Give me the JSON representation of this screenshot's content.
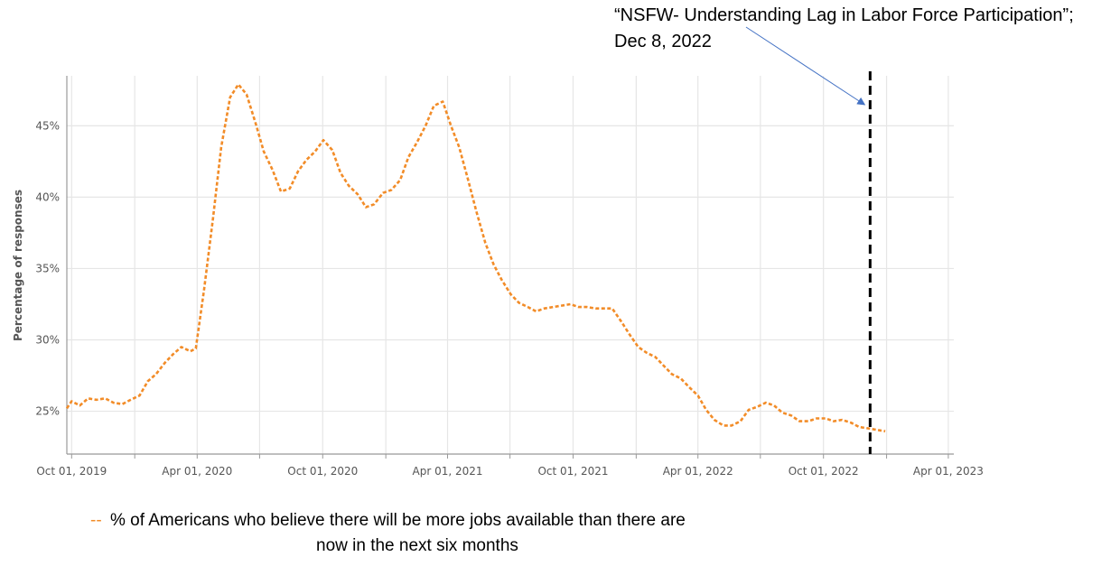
{
  "chart_data": {
    "type": "line",
    "title": "",
    "xlabel": "",
    "ylabel": "Percentage of responses",
    "ylim": [
      22,
      48.5
    ],
    "xlim": [
      "2019-09-24",
      "2023-04-09"
    ],
    "grid": true,
    "y_ticks": [
      {
        "value": 25,
        "label": "25%"
      },
      {
        "value": 30,
        "label": "30%"
      },
      {
        "value": 35,
        "label": "35%"
      },
      {
        "value": 40,
        "label": "40%"
      },
      {
        "value": 45,
        "label": "45%"
      }
    ],
    "x_labeled_ticks": [
      {
        "date": "2019-10-01",
        "label": "Oct 01, 2019"
      },
      {
        "date": "2020-04-01",
        "label": "Apr 01, 2020"
      },
      {
        "date": "2020-10-01",
        "label": "Oct 01, 2020"
      },
      {
        "date": "2021-04-01",
        "label": "Apr 01, 2021"
      },
      {
        "date": "2021-10-01",
        "label": "Oct 01, 2021"
      },
      {
        "date": "2022-04-01",
        "label": "Apr 01, 2022"
      },
      {
        "date": "2022-10-01",
        "label": "Oct 01, 2022"
      },
      {
        "date": "2023-04-01",
        "label": "Apr 01, 2023"
      }
    ],
    "x_minor_gridlines": [
      "2020-01-01",
      "2020-07-01",
      "2021-01-01",
      "2021-07-01",
      "2022-01-01",
      "2022-07-01",
      "2023-01-01"
    ],
    "series": [
      {
        "name": "% of Americans who believe there will be more jobs available than there are now in the next six months",
        "color": "#F28C28",
        "line_style": "dashed",
        "points": [
          [
            "2019-09-24",
            25.2
          ],
          [
            "2019-10-01",
            25.7
          ],
          [
            "2019-10-13",
            25.4
          ],
          [
            "2019-10-25",
            25.9
          ],
          [
            "2019-11-06",
            25.8
          ],
          [
            "2019-11-19",
            25.9
          ],
          [
            "2019-12-01",
            25.6
          ],
          [
            "2019-12-14",
            25.5
          ],
          [
            "2019-12-26",
            25.8
          ],
          [
            "2020-01-08",
            26.1
          ],
          [
            "2020-01-20",
            27.1
          ],
          [
            "2020-02-01",
            27.6
          ],
          [
            "2020-02-14",
            28.4
          ],
          [
            "2020-02-26",
            29.0
          ],
          [
            "2020-03-09",
            29.5
          ],
          [
            "2020-03-22",
            29.2
          ],
          [
            "2020-03-30",
            29.4
          ],
          [
            "2020-04-11",
            33.5
          ],
          [
            "2020-04-24",
            38.5
          ],
          [
            "2020-05-06",
            43.5
          ],
          [
            "2020-05-19",
            47.0
          ],
          [
            "2020-05-31",
            47.9
          ],
          [
            "2020-06-12",
            47.2
          ],
          [
            "2020-06-25",
            45.2
          ],
          [
            "2020-07-07",
            43.2
          ],
          [
            "2020-07-20",
            41.9
          ],
          [
            "2020-08-01",
            40.4
          ],
          [
            "2020-08-14",
            40.6
          ],
          [
            "2020-08-26",
            41.8
          ],
          [
            "2020-09-07",
            42.6
          ],
          [
            "2020-09-20",
            43.2
          ],
          [
            "2020-10-02",
            44.0
          ],
          [
            "2020-10-15",
            43.3
          ],
          [
            "2020-10-27",
            41.7
          ],
          [
            "2020-11-08",
            40.8
          ],
          [
            "2020-11-21",
            40.2
          ],
          [
            "2020-12-03",
            39.3
          ],
          [
            "2020-12-15",
            39.5
          ],
          [
            "2020-12-28",
            40.3
          ],
          [
            "2021-01-09",
            40.5
          ],
          [
            "2021-01-22",
            41.2
          ],
          [
            "2021-02-03",
            42.8
          ],
          [
            "2021-02-15",
            43.8
          ],
          [
            "2021-02-28",
            45.0
          ],
          [
            "2021-03-12",
            46.4
          ],
          [
            "2021-03-25",
            46.7
          ],
          [
            "2021-04-06",
            45.0
          ],
          [
            "2021-04-18",
            43.5
          ],
          [
            "2021-05-01",
            41.2
          ],
          [
            "2021-05-13",
            39.0
          ],
          [
            "2021-05-26",
            36.8
          ],
          [
            "2021-06-07",
            35.3
          ],
          [
            "2021-06-19",
            34.2
          ],
          [
            "2021-07-02",
            33.2
          ],
          [
            "2021-07-14",
            32.6
          ],
          [
            "2021-07-27",
            32.3
          ],
          [
            "2021-08-08",
            32.0
          ],
          [
            "2021-08-20",
            32.2
          ],
          [
            "2021-09-02",
            32.3
          ],
          [
            "2021-09-14",
            32.4
          ],
          [
            "2021-09-27",
            32.5
          ],
          [
            "2021-10-09",
            32.3
          ],
          [
            "2021-10-21",
            32.3
          ],
          [
            "2021-11-03",
            32.2
          ],
          [
            "2021-11-15",
            32.2
          ],
          [
            "2021-11-27",
            32.2
          ],
          [
            "2021-12-10",
            31.3
          ],
          [
            "2021-12-22",
            30.4
          ],
          [
            "2022-01-04",
            29.5
          ],
          [
            "2022-01-16",
            29.1
          ],
          [
            "2022-01-29",
            28.8
          ],
          [
            "2022-02-10",
            28.2
          ],
          [
            "2022-02-22",
            27.6
          ],
          [
            "2022-03-07",
            27.3
          ],
          [
            "2022-03-19",
            26.7
          ],
          [
            "2022-04-01",
            26.1
          ],
          [
            "2022-04-13",
            25.1
          ],
          [
            "2022-04-25",
            24.4
          ],
          [
            "2022-05-08",
            24.0
          ],
          [
            "2022-05-20",
            24.0
          ],
          [
            "2022-06-02",
            24.3
          ],
          [
            "2022-06-14",
            25.1
          ],
          [
            "2022-06-26",
            25.3
          ],
          [
            "2022-07-09",
            25.6
          ],
          [
            "2022-07-21",
            25.4
          ],
          [
            "2022-08-02",
            24.9
          ],
          [
            "2022-08-15",
            24.7
          ],
          [
            "2022-08-27",
            24.3
          ],
          [
            "2022-09-09",
            24.3
          ],
          [
            "2022-09-21",
            24.5
          ],
          [
            "2022-10-04",
            24.5
          ],
          [
            "2022-10-16",
            24.3
          ],
          [
            "2022-10-28",
            24.4
          ],
          [
            "2022-11-10",
            24.2
          ],
          [
            "2022-11-22",
            23.9
          ],
          [
            "2022-12-05",
            23.8
          ],
          [
            "2022-12-17",
            23.7
          ],
          [
            "2022-12-30",
            23.6
          ]
        ]
      }
    ],
    "annotations": [
      {
        "lines": [
          "“NSFW- Understanding Lag in Labor Force Participation”;",
          "Dec 8, 2022"
        ],
        "line_style": "dashed",
        "line_color": "#000000",
        "arrow_color": "#4472C4"
      }
    ],
    "legend": {
      "placement": "bottom-left",
      "marker": "--",
      "marker_color": "#F28C28",
      "text_line1": "% of Americans who believe there will be more jobs available than there are",
      "text_line2": "now in the next six months"
    },
    "colors": {
      "grid": "#E6E6E6",
      "axis": "#999999",
      "tick_text": "#555555",
      "annotation_arrow": "#4472C4"
    }
  }
}
